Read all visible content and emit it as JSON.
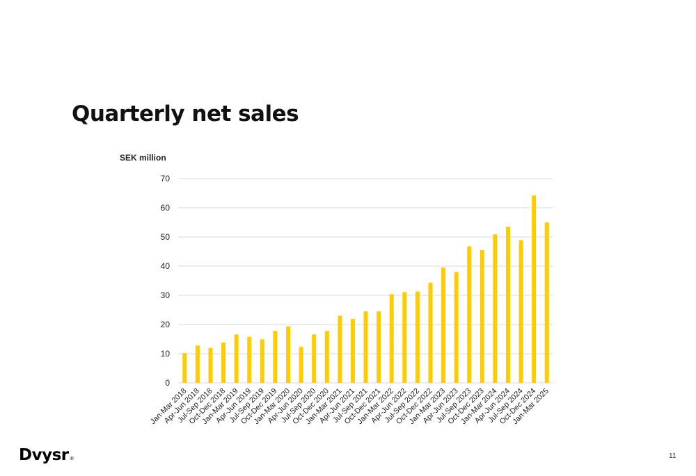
{
  "slide": {
    "title": "Quarterly net sales",
    "logo_text": "Dvysr",
    "logo_mark": "®",
    "page_number": "11"
  },
  "chart_data": {
    "type": "bar",
    "ylabel": "SEK million",
    "ylim": [
      0,
      70
    ],
    "yticks": [
      0,
      10,
      20,
      30,
      40,
      50,
      60,
      70
    ],
    "grid": true,
    "legend": "none",
    "bar_color": "#FFCC00",
    "categories": [
      "Jan-Mar 2018",
      "Apr-Jun 2018",
      "Jul-Sep 2018",
      "Oct-Dec 2018",
      "Jan-Mar 2019",
      "Apr-Jun 2019",
      "Jul-Sep 2019",
      "Oct-Dec 2019",
      "Jan-Mar 2020",
      "Apr-Jun 2020",
      "Jul-Sep 2020",
      "Oct-Dec 2020",
      "Jan-Mar 2021",
      "Apr-Jun 2021",
      "Jul-Sep 2021",
      "Oct-Dec 2021",
      "Jan-Mar 2022",
      "Apr-Jun 2022",
      "Jul-Sep 2022",
      "Oct-Dec 2022",
      "Jan-Mar 2023",
      "Apr-Jun 2023",
      "Jul-Sep 2023",
      "Oct-Dec 2023",
      "Jan-Mar 2024",
      "Apr-Jun 2024",
      "Jul-Sep 2024",
      "Oct-Dec 2024",
      "Jan-Mar 2025"
    ],
    "values": [
      10.2,
      12.8,
      12.0,
      13.8,
      16.6,
      15.8,
      14.9,
      17.8,
      19.4,
      12.3,
      16.6,
      17.8,
      23.0,
      21.9,
      24.5,
      24.5,
      30.4,
      31.1,
      31.3,
      34.3,
      39.5,
      38.0,
      46.8,
      45.5,
      50.9,
      53.5,
      48.9,
      64.2,
      55.0
    ]
  }
}
